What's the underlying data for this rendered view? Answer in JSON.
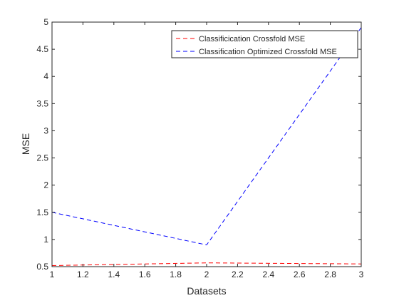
{
  "chart_data": {
    "type": "line",
    "title": "",
    "xlabel": "Datasets",
    "ylabel": "MSE",
    "xlim": [
      1,
      3
    ],
    "ylim": [
      0.5,
      5
    ],
    "xticks": [
      "1",
      "1.2",
      "1.4",
      "1.6",
      "1.8",
      "2",
      "2.2",
      "2.4",
      "2.6",
      "2.8",
      "3"
    ],
    "yticks": [
      "0.5",
      "1",
      "1.5",
      "2",
      "2.5",
      "3",
      "3.5",
      "4",
      "4.5",
      "5"
    ],
    "grid": false,
    "legend_position": "top-right",
    "x": [
      1,
      2,
      3
    ],
    "series": [
      {
        "name": "Classificication Crossfold MSE",
        "values": [
          0.52,
          0.57,
          0.55
        ],
        "color": "#ff0000",
        "line_style": "dashed"
      },
      {
        "name": "Classification Optimized Crossfold MSE",
        "values": [
          1.5,
          0.9,
          4.9
        ],
        "color": "#0000ff",
        "line_style": "dashed"
      }
    ]
  }
}
